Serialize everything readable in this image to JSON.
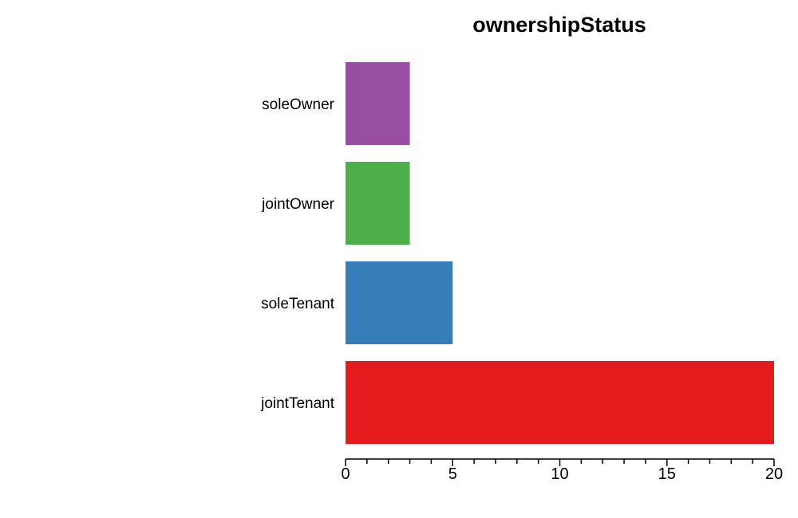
{
  "chart_data": {
    "type": "bar",
    "orientation": "horizontal",
    "title": "ownershipStatus",
    "xlabel": "",
    "ylabel": "",
    "categories": [
      "soleOwner",
      "jointOwner",
      "soleTenant",
      "jointTenant"
    ],
    "values": [
      3,
      3,
      5,
      20
    ],
    "colors": [
      "#984ea3",
      "#4daf4a",
      "#377eb8",
      "#e41a1c"
    ],
    "xlim": [
      0,
      20
    ],
    "major_ticks": [
      0,
      5,
      10,
      15,
      20
    ],
    "minor_tick_step": 1,
    "grid": false,
    "legend": "none"
  }
}
